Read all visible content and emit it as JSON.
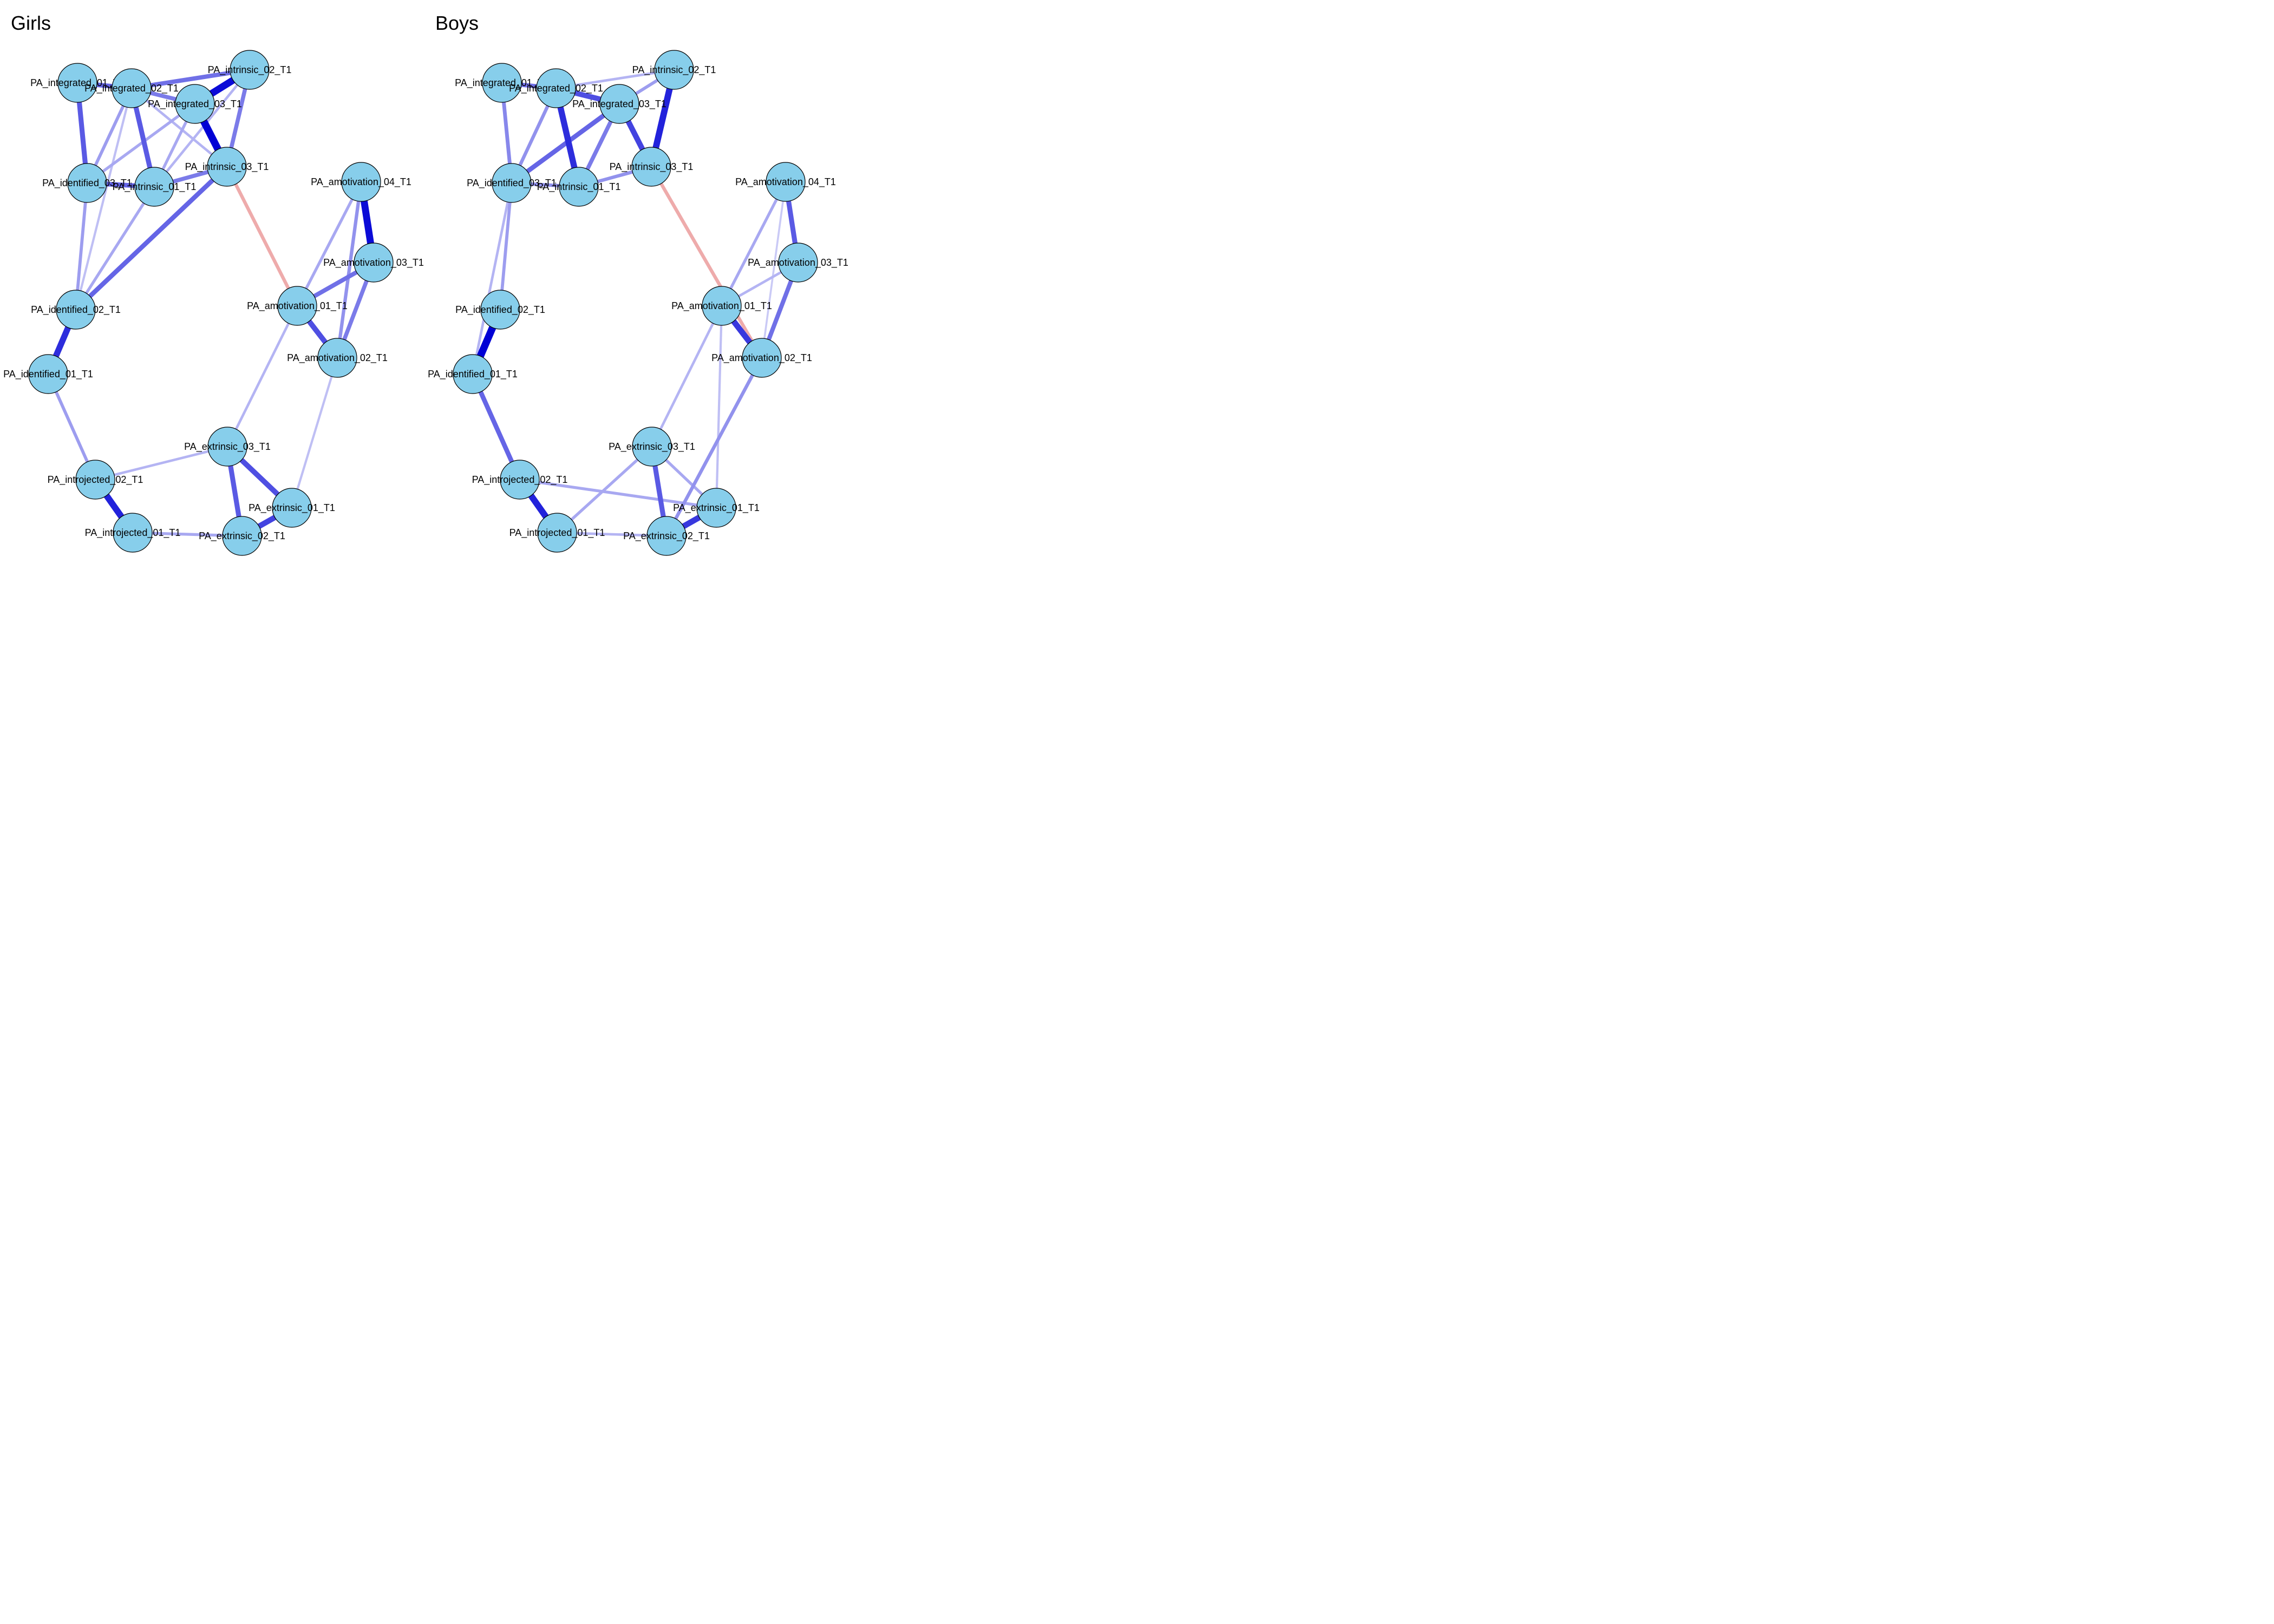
{
  "colors": {
    "positive": "#0000D5",
    "negative": "#D94545",
    "node_fill": "#87CEEB",
    "node_border": "#000000",
    "background": "#FFFFFF"
  },
  "panels": [
    {
      "title": "Girls",
      "nodes": [
        {
          "id": "PA_integrated_01_T1"
        },
        {
          "id": "PA_integrated_02_T1"
        },
        {
          "id": "PA_integrated_03_T1"
        },
        {
          "id": "PA_intrinsic_02_T1"
        },
        {
          "id": "PA_intrinsic_03_T1"
        },
        {
          "id": "PA_identified_03_T1"
        },
        {
          "id": "PA_intrinsic_01_T1"
        },
        {
          "id": "PA_amotivation_04_T1"
        },
        {
          "id": "PA_amotivation_03_T1"
        },
        {
          "id": "PA_amotivation_01_T1"
        },
        {
          "id": "PA_amotivation_02_T1"
        },
        {
          "id": "PA_identified_02_T1"
        },
        {
          "id": "PA_identified_01_T1"
        },
        {
          "id": "PA_extrinsic_03_T1"
        },
        {
          "id": "PA_introjected_02_T1"
        },
        {
          "id": "PA_extrinsic_01_T1"
        },
        {
          "id": "PA_introjected_01_T1"
        },
        {
          "id": "PA_extrinsic_02_T1"
        }
      ],
      "edges": [
        {
          "source": "PA_integrated_01_T1",
          "target": "PA_integrated_02_T1",
          "weight": 0.55,
          "sign": "positive"
        },
        {
          "source": "PA_integrated_01_T1",
          "target": "PA_identified_03_T1",
          "weight": 0.6,
          "sign": "positive"
        },
        {
          "source": "PA_integrated_02_T1",
          "target": "PA_intrinsic_02_T1",
          "weight": 0.5,
          "sign": "positive"
        },
        {
          "source": "PA_integrated_02_T1",
          "target": "PA_integrated_03_T1",
          "weight": 0.45,
          "sign": "positive"
        },
        {
          "source": "PA_integrated_02_T1",
          "target": "PA_intrinsic_01_T1",
          "weight": 0.6,
          "sign": "positive"
        },
        {
          "source": "PA_integrated_02_T1",
          "target": "PA_identified_03_T1",
          "weight": 0.3,
          "sign": "positive"
        },
        {
          "source": "PA_integrated_02_T1",
          "target": "PA_intrinsic_03_T1",
          "weight": 0.2,
          "sign": "positive"
        },
        {
          "source": "PA_integrated_02_T1",
          "target": "PA_identified_02_T1",
          "weight": 0.15,
          "sign": "positive"
        },
        {
          "source": "PA_integrated_03_T1",
          "target": "PA_intrinsic_02_T1",
          "weight": 0.95,
          "sign": "positive"
        },
        {
          "source": "PA_integrated_03_T1",
          "target": "PA_intrinsic_03_T1",
          "weight": 1.0,
          "sign": "positive"
        },
        {
          "source": "PA_integrated_03_T1",
          "target": "PA_identified_03_T1",
          "weight": 0.25,
          "sign": "positive"
        },
        {
          "source": "PA_integrated_03_T1",
          "target": "PA_intrinsic_01_T1",
          "weight": 0.25,
          "sign": "positive"
        },
        {
          "source": "PA_intrinsic_02_T1",
          "target": "PA_intrinsic_03_T1",
          "weight": 0.45,
          "sign": "positive"
        },
        {
          "source": "PA_intrinsic_02_T1",
          "target": "PA_intrinsic_01_T1",
          "weight": 0.2,
          "sign": "positive"
        },
        {
          "source": "PA_intrinsic_03_T1",
          "target": "PA_intrinsic_01_T1",
          "weight": 0.45,
          "sign": "positive"
        },
        {
          "source": "PA_intrinsic_03_T1",
          "target": "PA_identified_02_T1",
          "weight": 0.55,
          "sign": "positive"
        },
        {
          "source": "PA_intrinsic_03_T1",
          "target": "PA_amotivation_01_T1",
          "weight": 0.35,
          "sign": "negative"
        },
        {
          "source": "PA_identified_03_T1",
          "target": "PA_intrinsic_01_T1",
          "weight": 0.55,
          "sign": "positive"
        },
        {
          "source": "PA_identified_03_T1",
          "target": "PA_identified_02_T1",
          "weight": 0.3,
          "sign": "positive"
        },
        {
          "source": "PA_intrinsic_01_T1",
          "target": "PA_identified_02_T1",
          "weight": 0.25,
          "sign": "positive"
        },
        {
          "source": "PA_identified_02_T1",
          "target": "PA_identified_01_T1",
          "weight": 0.8,
          "sign": "positive"
        },
        {
          "source": "PA_identified_01_T1",
          "target": "PA_introjected_02_T1",
          "weight": 0.3,
          "sign": "positive"
        },
        {
          "source": "PA_introjected_02_T1",
          "target": "PA_introjected_01_T1",
          "weight": 0.85,
          "sign": "positive"
        },
        {
          "source": "PA_introjected_02_T1",
          "target": "PA_extrinsic_03_T1",
          "weight": 0.2,
          "sign": "positive"
        },
        {
          "source": "PA_introjected_01_T1",
          "target": "PA_extrinsic_02_T1",
          "weight": 0.25,
          "sign": "positive"
        },
        {
          "source": "PA_extrinsic_03_T1",
          "target": "PA_extrinsic_01_T1",
          "weight": 0.65,
          "sign": "positive"
        },
        {
          "source": "PA_extrinsic_03_T1",
          "target": "PA_extrinsic_02_T1",
          "weight": 0.6,
          "sign": "positive"
        },
        {
          "source": "PA_extrinsic_03_T1",
          "target": "PA_amotivation_01_T1",
          "weight": 0.2,
          "sign": "positive"
        },
        {
          "source": "PA_extrinsic_01_T1",
          "target": "PA_extrinsic_02_T1",
          "weight": 0.7,
          "sign": "positive"
        },
        {
          "source": "PA_extrinsic_01_T1",
          "target": "PA_amotivation_02_T1",
          "weight": 0.15,
          "sign": "positive"
        },
        {
          "source": "PA_amotivation_04_T1",
          "target": "PA_amotivation_03_T1",
          "weight": 0.95,
          "sign": "positive"
        },
        {
          "source": "PA_amotivation_04_T1",
          "target": "PA_amotivation_01_T1",
          "weight": 0.25,
          "sign": "positive"
        },
        {
          "source": "PA_amotivation_04_T1",
          "target": "PA_amotivation_02_T1",
          "weight": 0.35,
          "sign": "positive"
        },
        {
          "source": "PA_amotivation_03_T1",
          "target": "PA_amotivation_01_T1",
          "weight": 0.5,
          "sign": "positive"
        },
        {
          "source": "PA_amotivation_03_T1",
          "target": "PA_amotivation_02_T1",
          "weight": 0.45,
          "sign": "positive"
        },
        {
          "source": "PA_amotivation_01_T1",
          "target": "PA_amotivation_02_T1",
          "weight": 0.65,
          "sign": "positive"
        }
      ]
    },
    {
      "title": "Boys",
      "nodes": [
        {
          "id": "PA_integrated_01_T1"
        },
        {
          "id": "PA_integrated_02_T1"
        },
        {
          "id": "PA_integrated_03_T1"
        },
        {
          "id": "PA_intrinsic_02_T1"
        },
        {
          "id": "PA_intrinsic_03_T1"
        },
        {
          "id": "PA_identified_03_T1"
        },
        {
          "id": "PA_intrinsic_01_T1"
        },
        {
          "id": "PA_amotivation_04_T1"
        },
        {
          "id": "PA_amotivation_03_T1"
        },
        {
          "id": "PA_amotivation_01_T1"
        },
        {
          "id": "PA_amotivation_02_T1"
        },
        {
          "id": "PA_identified_02_T1"
        },
        {
          "id": "PA_identified_01_T1"
        },
        {
          "id": "PA_extrinsic_03_T1"
        },
        {
          "id": "PA_introjected_02_T1"
        },
        {
          "id": "PA_extrinsic_01_T1"
        },
        {
          "id": "PA_introjected_01_T1"
        },
        {
          "id": "PA_extrinsic_02_T1"
        }
      ],
      "edges": [
        {
          "source": "PA_integrated_01_T1",
          "target": "PA_integrated_02_T1",
          "weight": 0.5,
          "sign": "positive"
        },
        {
          "source": "PA_integrated_01_T1",
          "target": "PA_identified_03_T1",
          "weight": 0.4,
          "sign": "positive"
        },
        {
          "source": "PA_integrated_02_T1",
          "target": "PA_intrinsic_02_T1",
          "weight": 0.2,
          "sign": "positive"
        },
        {
          "source": "PA_integrated_02_T1",
          "target": "PA_integrated_03_T1",
          "weight": 0.65,
          "sign": "positive"
        },
        {
          "source": "PA_integrated_02_T1",
          "target": "PA_intrinsic_01_T1",
          "weight": 0.8,
          "sign": "positive"
        },
        {
          "source": "PA_integrated_02_T1",
          "target": "PA_identified_03_T1",
          "weight": 0.35,
          "sign": "positive"
        },
        {
          "source": "PA_integrated_03_T1",
          "target": "PA_intrinsic_03_T1",
          "weight": 0.7,
          "sign": "positive"
        },
        {
          "source": "PA_integrated_03_T1",
          "target": "PA_identified_03_T1",
          "weight": 0.55,
          "sign": "positive"
        },
        {
          "source": "PA_integrated_03_T1",
          "target": "PA_intrinsic_01_T1",
          "weight": 0.45,
          "sign": "positive"
        },
        {
          "source": "PA_intrinsic_02_T1",
          "target": "PA_intrinsic_03_T1",
          "weight": 0.85,
          "sign": "positive"
        },
        {
          "source": "PA_intrinsic_02_T1",
          "target": "PA_integrated_03_T1",
          "weight": 0.3,
          "sign": "positive"
        },
        {
          "source": "PA_intrinsic_03_T1",
          "target": "PA_intrinsic_01_T1",
          "weight": 0.35,
          "sign": "positive"
        },
        {
          "source": "PA_intrinsic_03_T1",
          "target": "PA_amotivation_02_T1",
          "weight": 0.35,
          "sign": "negative"
        },
        {
          "source": "PA_identified_03_T1",
          "target": "PA_intrinsic_01_T1",
          "weight": 0.35,
          "sign": "positive"
        },
        {
          "source": "PA_identified_03_T1",
          "target": "PA_identified_02_T1",
          "weight": 0.3,
          "sign": "positive"
        },
        {
          "source": "PA_identified_03_T1",
          "target": "PA_identified_01_T1",
          "weight": 0.2,
          "sign": "positive"
        },
        {
          "source": "PA_identified_02_T1",
          "target": "PA_identified_01_T1",
          "weight": 1.0,
          "sign": "positive"
        },
        {
          "source": "PA_identified_01_T1",
          "target": "PA_introjected_02_T1",
          "weight": 0.55,
          "sign": "positive"
        },
        {
          "source": "PA_introjected_02_T1",
          "target": "PA_introjected_01_T1",
          "weight": 0.85,
          "sign": "positive"
        },
        {
          "source": "PA_introjected_02_T1",
          "target": "PA_extrinsic_01_T1",
          "weight": 0.25,
          "sign": "positive"
        },
        {
          "source": "PA_introjected_01_T1",
          "target": "PA_extrinsic_02_T1",
          "weight": 0.2,
          "sign": "positive"
        },
        {
          "source": "PA_introjected_01_T1",
          "target": "PA_extrinsic_03_T1",
          "weight": 0.25,
          "sign": "positive"
        },
        {
          "source": "PA_extrinsic_03_T1",
          "target": "PA_extrinsic_01_T1",
          "weight": 0.25,
          "sign": "positive"
        },
        {
          "source": "PA_extrinsic_03_T1",
          "target": "PA_extrinsic_02_T1",
          "weight": 0.6,
          "sign": "positive"
        },
        {
          "source": "PA_extrinsic_03_T1",
          "target": "PA_amotivation_01_T1",
          "weight": 0.2,
          "sign": "positive"
        },
        {
          "source": "PA_extrinsic_01_T1",
          "target": "PA_extrinsic_02_T1",
          "weight": 0.75,
          "sign": "positive"
        },
        {
          "source": "PA_extrinsic_01_T1",
          "target": "PA_amotivation_01_T1",
          "weight": 0.15,
          "sign": "positive"
        },
        {
          "source": "PA_extrinsic_02_T1",
          "target": "PA_amotivation_02_T1",
          "weight": 0.35,
          "sign": "positive"
        },
        {
          "source": "PA_amotivation_04_T1",
          "target": "PA_amotivation_03_T1",
          "weight": 0.6,
          "sign": "positive"
        },
        {
          "source": "PA_amotivation_04_T1",
          "target": "PA_amotivation_01_T1",
          "weight": 0.25,
          "sign": "positive"
        },
        {
          "source": "PA_amotivation_04_T1",
          "target": "PA_amotivation_02_T1",
          "weight": 0.1,
          "sign": "positive"
        },
        {
          "source": "PA_amotivation_03_T1",
          "target": "PA_amotivation_01_T1",
          "weight": 0.2,
          "sign": "positive"
        },
        {
          "source": "PA_amotivation_03_T1",
          "target": "PA_amotivation_02_T1",
          "weight": 0.5,
          "sign": "positive"
        },
        {
          "source": "PA_amotivation_01_T1",
          "target": "PA_amotivation_02_T1",
          "weight": 0.75,
          "sign": "positive"
        }
      ]
    }
  ]
}
